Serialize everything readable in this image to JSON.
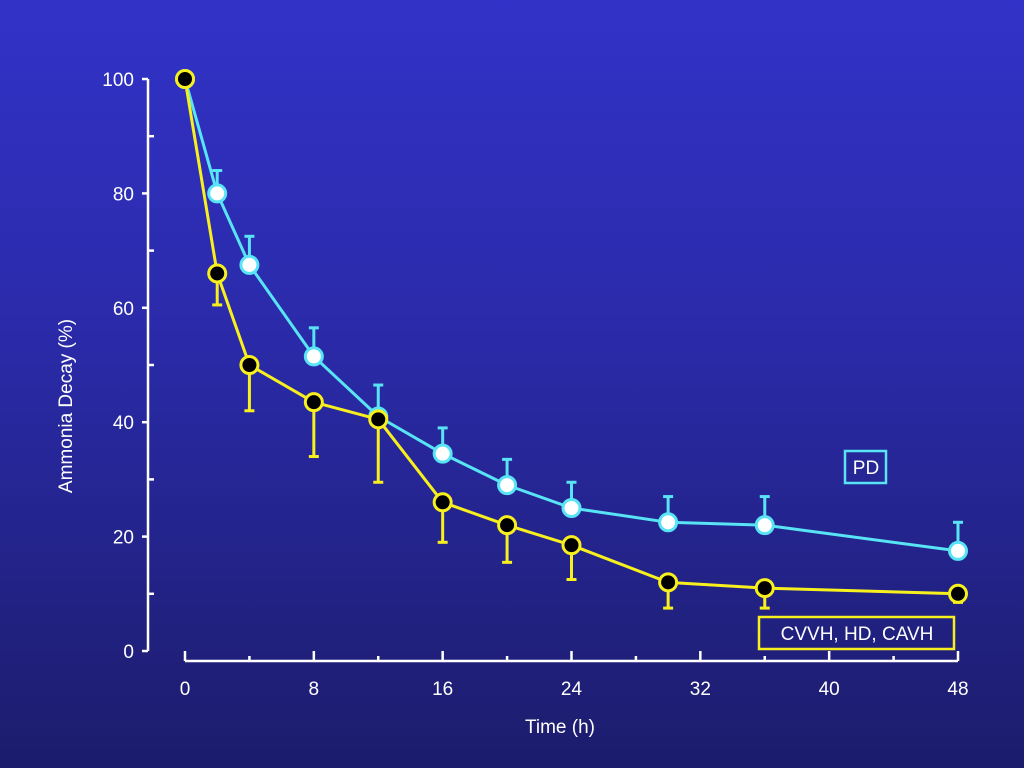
{
  "chart_data": {
    "type": "line",
    "title": "",
    "xlabel": "Time (h)",
    "ylabel": "Ammonia Decay (%)",
    "xlim": [
      0,
      48
    ],
    "ylim": [
      0,
      100
    ],
    "x_ticks": [
      0,
      8,
      16,
      24,
      32,
      40,
      48
    ],
    "y_ticks": [
      0,
      20,
      40,
      60,
      80,
      100
    ],
    "grid": false,
    "series": [
      {
        "name": "PD",
        "color": "#58e4f4",
        "marker_fill": "#ffffff",
        "error_direction": "up",
        "x": [
          0,
          2,
          4,
          8,
          12,
          16,
          20,
          24,
          30,
          36,
          48
        ],
        "y": [
          100,
          80,
          67.5,
          51.5,
          41,
          34.5,
          29,
          25,
          22.5,
          22,
          17.5
        ],
        "error": [
          0,
          4,
          5,
          5,
          5.5,
          4.5,
          4.5,
          4.5,
          4.5,
          5,
          5
        ]
      },
      {
        "name": "CVVH, HD, CAVH",
        "color": "#f7f01e",
        "marker_fill": "#000000",
        "error_direction": "down",
        "x": [
          0,
          2,
          4,
          8,
          12,
          16,
          20,
          24,
          30,
          36,
          48
        ],
        "y": [
          100,
          66,
          50,
          43.5,
          40.5,
          26,
          22,
          18.5,
          12,
          11,
          10
        ],
        "error": [
          0,
          5.5,
          8,
          9.5,
          11,
          7,
          6.5,
          6,
          4.5,
          3.5,
          1.5
        ]
      }
    ]
  }
}
